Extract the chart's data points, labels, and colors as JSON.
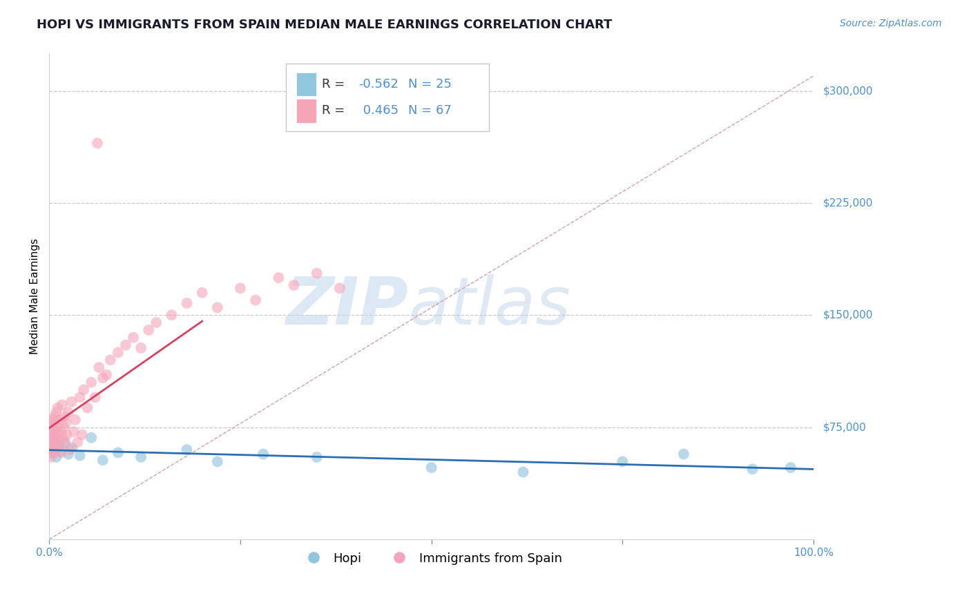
{
  "title": "HOPI VS IMMIGRANTS FROM SPAIN MEDIAN MALE EARNINGS CORRELATION CHART",
  "source_text": "Source: ZipAtlas.com",
  "ylabel": "Median Male Earnings",
  "xlim": [
    0.0,
    1.0
  ],
  "ylim": [
    0,
    325000
  ],
  "xtick_positions": [
    0.0,
    0.25,
    0.5,
    0.75,
    1.0
  ],
  "xticklabels": [
    "0.0%",
    "",
    "",
    "",
    "100.0%"
  ],
  "ytick_positions": [
    75000,
    150000,
    225000,
    300000
  ],
  "yticklabels": [
    "$75,000",
    "$150,000",
    "$225,000",
    "$300,000"
  ],
  "grid_color": "#c8c8c8",
  "bg_color": "#ffffff",
  "blue_color": "#92c5de",
  "pink_color": "#f4a6b8",
  "trend_blue": "#2a6db5",
  "trend_pink": "#d94060",
  "trend_dash": "#d0a0a8",
  "label_blue": "#4a90d9",
  "legend_text_color": "#333333",
  "legend_rn_color": "#4a90d9",
  "r_blue": "-0.562",
  "n_blue": 25,
  "r_pink": "0.465",
  "n_pink": 67,
  "title_color": "#1a1a2e",
  "title_fontsize": 13,
  "ylabel_fontsize": 11,
  "tick_fontsize": 11,
  "legend_fontsize": 13,
  "source_fontsize": 10,
  "watermark_zip_color": "#c0d8ee",
  "watermark_atlas_color": "#b8cfe8"
}
